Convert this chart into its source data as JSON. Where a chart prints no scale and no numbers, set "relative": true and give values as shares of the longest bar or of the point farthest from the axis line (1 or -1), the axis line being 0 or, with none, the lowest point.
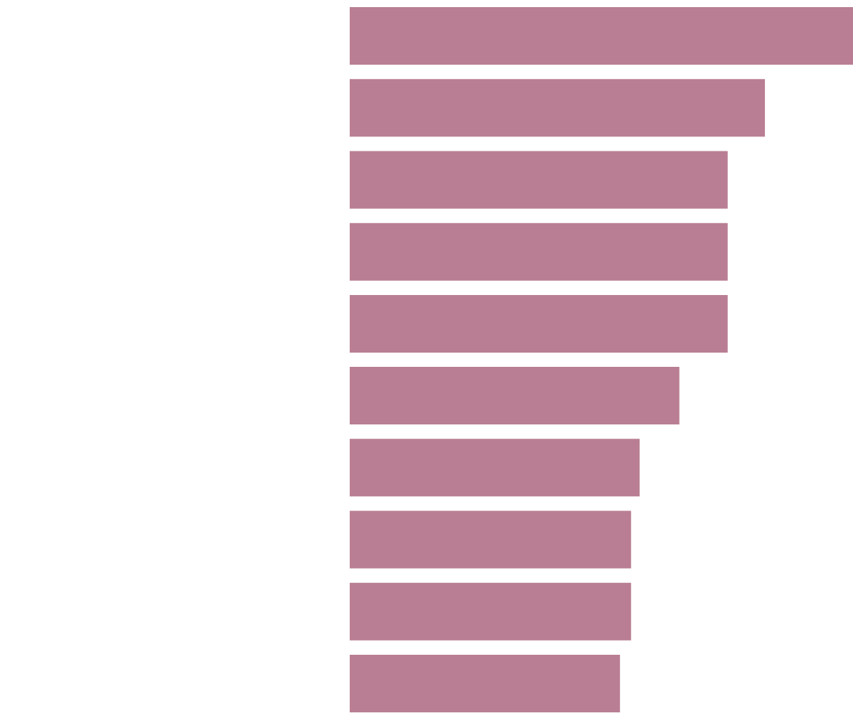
{
  "chart_data": {
    "type": "bar",
    "orientation": "horizontal",
    "relative": true,
    "legend": false,
    "categories": [
      null,
      null,
      null,
      null,
      null,
      null,
      null,
      null,
      null,
      null
    ],
    "values": [
      1,
      0.825,
      0.751,
      0.751,
      0.751,
      0.655,
      0.576,
      0.559,
      0.559,
      0.537
    ],
    "color": "#b97e93"
  }
}
